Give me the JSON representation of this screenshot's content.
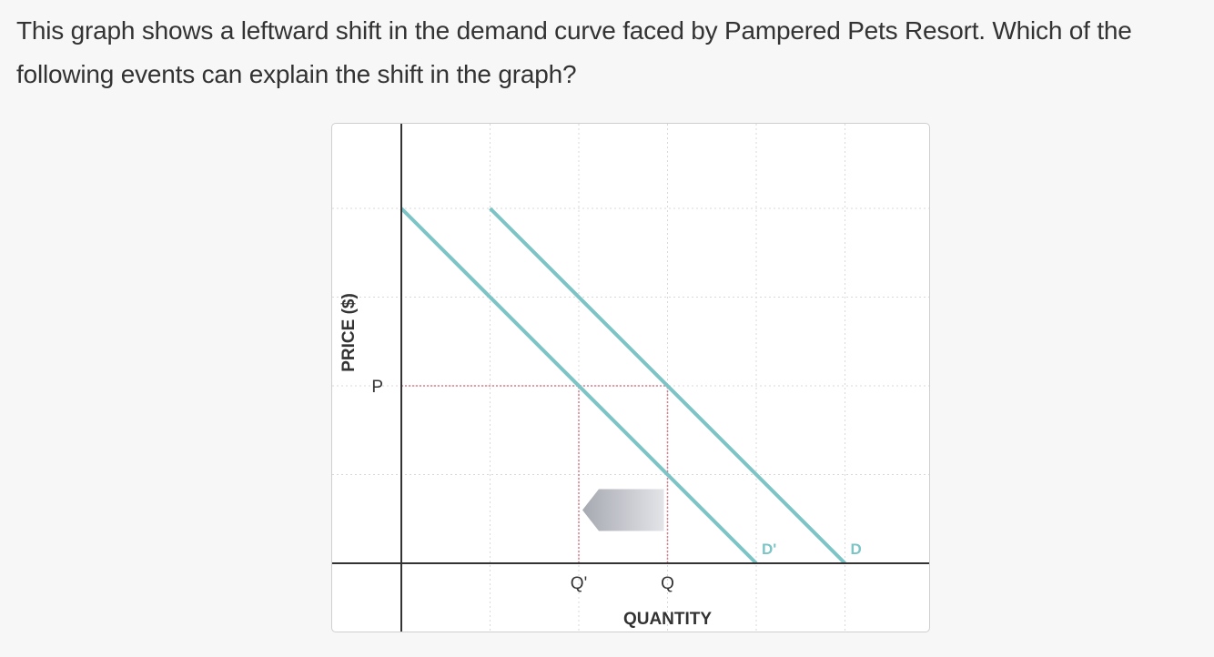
{
  "question": {
    "text": "This graph shows a leftward shift in the demand curve faced by Pampered Pets Resort. Which of the following events can explain the shift in the graph?"
  },
  "colors": {
    "curve": "#7cc4c6",
    "guide": "#e07a8c",
    "grid": "#d9d9d9",
    "axis": "#333333",
    "arrow_dark": "#a7a9b2",
    "arrow_light": "#e3e4e8"
  },
  "chart_data": {
    "type": "line",
    "xlabel": "QUANTITY",
    "ylabel": "PRICE ($)",
    "grid": true,
    "xlim": [
      0,
      6
    ],
    "ylim": [
      0,
      4
    ],
    "x_ticks": [
      {
        "value": 2,
        "label": "Q'"
      },
      {
        "value": 3,
        "label": "Q"
      }
    ],
    "y_ticks": [
      {
        "value": 2,
        "label": "P"
      }
    ],
    "series": [
      {
        "name": "D",
        "x": [
          1,
          5
        ],
        "y": [
          4,
          0
        ]
      },
      {
        "name": "D'",
        "x": [
          0,
          4
        ],
        "y": [
          4,
          0
        ]
      }
    ],
    "guides": [
      {
        "from": [
          0,
          2
        ],
        "to": [
          3,
          2
        ]
      },
      {
        "from": [
          2,
          0
        ],
        "to": [
          2,
          2
        ]
      },
      {
        "from": [
          3,
          0
        ],
        "to": [
          3,
          2
        ]
      }
    ],
    "shift_arrow": {
      "direction": "left",
      "from_x": 3,
      "to_x": 2,
      "y": 0.6
    }
  }
}
